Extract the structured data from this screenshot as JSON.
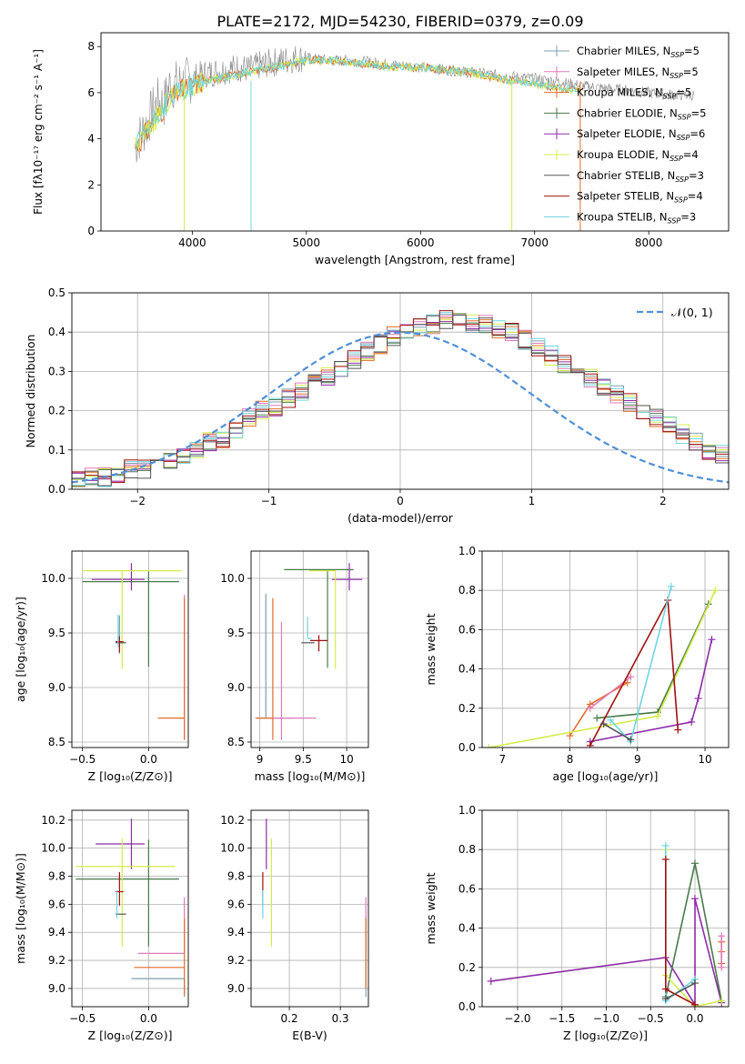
{
  "figure_title": "PLATE=2172, MJD=54230, FIBERID=0379, z=0.09",
  "colors": {
    "chabrier_miles": "#7f9fb0",
    "salpeter_miles": "#e07ab8",
    "kroupa_miles": "#e46d2a",
    "chabrier_elodie": "#4a7a4a",
    "salpeter_elodie": "#8e2aa8",
    "kroupa_elodie": "#d4ec48",
    "chabrier_stelib": "#555555",
    "salpeter_stelib": "#a01010",
    "kroupa_stelib": "#6ed6e0",
    "normal": "#4f8fd8",
    "grid": "#b0b0b0"
  },
  "chart_data": [
    {
      "id": "spectrum",
      "type": "line",
      "xlabel": "wavelength [Angstrom, rest frame]",
      "ylabel": "Flux [fλ10⁻¹⁷ erg cm⁻² s⁻¹ A⁻¹]",
      "xlim": [
        3200,
        8700
      ],
      "ylim": [
        0,
        8.6
      ],
      "xticks": [
        4000,
        5000,
        6000,
        7000,
        8000
      ],
      "yticks": [
        0,
        2,
        4,
        6,
        8
      ],
      "grid": false,
      "legend_position": "right",
      "data_wavelength": [
        3500,
        3550,
        3600,
        3650,
        3700,
        3750,
        3800,
        3900,
        4000,
        4100,
        4200,
        4300,
        4400,
        4500,
        4600,
        4700,
        4800,
        4900,
        5000,
        5200,
        5400,
        5600,
        5800,
        6000,
        6200,
        6400,
        6600,
        6800,
        7000,
        7200,
        7400,
        7600,
        7800,
        8000,
        8200,
        8400
      ],
      "data_flux": [
        3.7,
        4.2,
        4.6,
        5.2,
        5.6,
        5.5,
        6.3,
        6.4,
        6.6,
        6.8,
        6.9,
        7.0,
        7.1,
        7.0,
        7.2,
        7.3,
        7.4,
        7.5,
        7.5,
        7.4,
        7.4,
        7.3,
        7.2,
        7.1,
        7.0,
        6.9,
        6.8,
        6.7,
        6.6,
        6.5,
        6.3,
        6.2,
        6.1,
        6.0,
        5.9,
        5.9
      ],
      "model_wavelength": [
        3500,
        3600,
        3700,
        3800,
        3900,
        4000,
        4100,
        4200,
        4300,
        4400,
        4500,
        4600,
        4800,
        5000,
        5200,
        5400,
        5600,
        5800,
        6000,
        6200,
        6400,
        6600,
        6800,
        7000,
        7200,
        7400
      ],
      "model_flux": [
        3.6,
        4.3,
        5.0,
        5.7,
        6.1,
        6.3,
        6.5,
        6.6,
        6.7,
        6.8,
        6.9,
        7.0,
        7.2,
        7.4,
        7.4,
        7.3,
        7.2,
        7.1,
        7.1,
        7.0,
        6.9,
        6.7,
        6.5,
        6.4,
        6.2,
        6.1
      ],
      "legend": [
        "Chabrier MILES, N_SSP=5",
        "Salpeter MILES, N_SSP=5",
        "Kroupa MILES, N_SSP=5",
        "Chabrier ELODIE, N_SSP=5",
        "Salpeter ELODIE, N_SSP=6",
        "Kroupa ELODIE, N_SSP=4",
        "Chabrier STELIB, N_SSP=3",
        "Salpeter STELIB, N_SSP=4",
        "Kroupa STELIB, N_SSP=3"
      ]
    },
    {
      "id": "residuals",
      "type": "bar",
      "xlabel": "(data-model)/error",
      "ylabel": "Normed distribution",
      "xlim": [
        -2.5,
        2.5
      ],
      "ylim": [
        0,
        0.5
      ],
      "xticks": [
        -2,
        -1,
        0,
        1,
        2
      ],
      "yticks": [
        0.0,
        0.1,
        0.2,
        0.3,
        0.4,
        0.5
      ],
      "grid": true,
      "legend": [
        "𝒩(0, 1)"
      ],
      "legend_position": "top-right",
      "bin_start": -2.5,
      "bin_width": 0.1,
      "hist_values": [
        0.02,
        0.03,
        0.03,
        0.04,
        0.05,
        0.05,
        0.06,
        0.07,
        0.09,
        0.1,
        0.12,
        0.13,
        0.15,
        0.18,
        0.2,
        0.21,
        0.23,
        0.25,
        0.27,
        0.29,
        0.31,
        0.33,
        0.35,
        0.37,
        0.39,
        0.4,
        0.41,
        0.42,
        0.43,
        0.43,
        0.42,
        0.42,
        0.41,
        0.4,
        0.38,
        0.36,
        0.34,
        0.32,
        0.3,
        0.28,
        0.26,
        0.24,
        0.22,
        0.2,
        0.18,
        0.16,
        0.14,
        0.12,
        0.1,
        0.09,
        0.08,
        0.07,
        0.06,
        0.06,
        0.05,
        0.05,
        0.04,
        0.04,
        0.04,
        0.04
      ]
    },
    {
      "id": "age_vs_z",
      "type": "scatter",
      "xlabel": "Z [log₁₀(Z/Z⊙)]",
      "ylabel": "age  [log₁₀(age/yr)]",
      "xlim": [
        -0.58,
        0.3
      ],
      "ylim": [
        8.45,
        10.25
      ],
      "xticks": [
        -0.5,
        0.0
      ],
      "xtick_labels": [
        "−0.5",
        "0.0"
      ],
      "yticks": [
        8.5,
        9.0,
        9.5,
        10.0
      ],
      "grid": true,
      "points": [
        {
          "x": -0.22,
          "y": 9.41,
          "dxl": 0.0,
          "dxr": 0.0,
          "dyl": 0.1,
          "dyu": 0.25,
          "c": "chabrier_miles"
        },
        {
          "x": 0.27,
          "y": 8.72,
          "dxl": 0.03,
          "dxr": 0.0,
          "dyl": 0.2,
          "dyu": 1.13,
          "c": "salpeter_miles"
        },
        {
          "x": 0.27,
          "y": 8.72,
          "dxl": 0.2,
          "dxr": 0.0,
          "dyl": 0.2,
          "dyu": 1.1,
          "c": "kroupa_miles"
        },
        {
          "x": 0.0,
          "y": 9.97,
          "dxl": 0.5,
          "dxr": 0.23,
          "dyl": 0.78,
          "dyu": 0.1,
          "c": "chabrier_elodie"
        },
        {
          "x": -0.13,
          "y": 9.99,
          "dxl": 0.3,
          "dxr": 0.1,
          "dyl": 0.1,
          "dyu": 0.15,
          "c": "salpeter_elodie"
        },
        {
          "x": -0.2,
          "y": 10.07,
          "dxl": 0.3,
          "dxr": 0.45,
          "dyl": 0.9,
          "dyu": 0.0,
          "c": "kroupa_elodie"
        },
        {
          "x": -0.22,
          "y": 9.41,
          "dxl": 0.03,
          "dxr": 0.05,
          "dyl": 0.0,
          "dyu": 0.0,
          "c": "chabrier_stelib"
        },
        {
          "x": -0.22,
          "y": 9.42,
          "dxl": 0.03,
          "dxr": 0.03,
          "dyl": 0.1,
          "dyu": 0.05,
          "c": "salpeter_stelib"
        },
        {
          "x": -0.23,
          "y": 9.42,
          "dxl": 0.0,
          "dxr": 0.0,
          "dyl": 0.05,
          "dyu": 0.25,
          "c": "kroupa_stelib"
        }
      ]
    },
    {
      "id": "age_vs_mass",
      "type": "scatter",
      "xlabel": "mass [log₁₀(M/M⊙)]",
      "ylabel": "",
      "xlim": [
        8.9,
        10.25
      ],
      "ylim": [
        8.45,
        10.25
      ],
      "xticks": [
        9.0,
        9.5,
        10.0
      ],
      "yticks": [
        8.5,
        9.0,
        9.5,
        10.0
      ],
      "grid": true,
      "points": [
        {
          "x": 9.07,
          "y": 8.72,
          "dxl": 0.1,
          "dxr": 0.3,
          "dyl": 0.0,
          "dyu": 1.14,
          "c": "chabrier_miles"
        },
        {
          "x": 9.25,
          "y": 8.72,
          "dxl": 0.1,
          "dxr": 0.4,
          "dyl": 0.2,
          "dyu": 0.88,
          "c": "salpeter_miles"
        },
        {
          "x": 9.15,
          "y": 8.72,
          "dxl": 0.2,
          "dxr": 0.0,
          "dyl": 0.2,
          "dyu": 1.1,
          "c": "kroupa_miles"
        },
        {
          "x": 9.78,
          "y": 10.08,
          "dxl": 0.5,
          "dxr": 0.3,
          "dyl": 0.9,
          "dyu": 0.0,
          "c": "chabrier_elodie"
        },
        {
          "x": 10.03,
          "y": 9.99,
          "dxl": 0.2,
          "dxr": 0.15,
          "dyl": 0.1,
          "dyu": 0.15,
          "c": "salpeter_elodie"
        },
        {
          "x": 9.87,
          "y": 10.07,
          "dxl": 0.3,
          "dxr": 0.0,
          "dyl": 0.9,
          "dyu": 0.0,
          "c": "kroupa_elodie"
        },
        {
          "x": 9.53,
          "y": 9.41,
          "dxl": 0.05,
          "dxr": 0.1,
          "dyl": 0.0,
          "dyu": 0.0,
          "c": "chabrier_stelib"
        },
        {
          "x": 9.68,
          "y": 9.43,
          "dxl": 0.1,
          "dxr": 0.1,
          "dyl": 0.1,
          "dyu": 0.05,
          "c": "salpeter_stelib"
        },
        {
          "x": 9.55,
          "y": 9.45,
          "dxl": 0.0,
          "dxr": 0.05,
          "dyl": 0.0,
          "dyu": 0.2,
          "c": "kroupa_stelib"
        }
      ]
    },
    {
      "id": "weight_vs_age",
      "type": "line",
      "xlabel": "age  [log₁₀(age/yr)]",
      "ylabel": "mass weight",
      "xlim": [
        6.7,
        10.35
      ],
      "ylim": [
        0,
        1.0
      ],
      "xticks": [
        7,
        8,
        9,
        10
      ],
      "yticks": [
        0.0,
        0.2,
        0.4,
        0.6,
        0.8,
        1.0
      ],
      "grid": true,
      "series": [
        {
          "c": "kroupa_miles",
          "x": [
            8.0,
            8.3,
            8.85
          ],
          "y": [
            0.06,
            0.22,
            0.33
          ]
        },
        {
          "c": "salpeter_miles",
          "x": [
            8.3,
            8.9
          ],
          "y": [
            0.2,
            0.36
          ]
        },
        {
          "c": "chabrier_elodie",
          "x": [
            8.4,
            9.3,
            10.05
          ],
          "y": [
            0.15,
            0.18,
            0.73
          ]
        },
        {
          "c": "salpeter_elodie",
          "x": [
            8.3,
            9.8,
            9.9,
            10.1
          ],
          "y": [
            0.03,
            0.13,
            0.25,
            0.55
          ]
        },
        {
          "c": "kroupa_elodie",
          "x": [
            6.8,
            9.3,
            10.15
          ],
          "y": [
            0.0,
            0.16,
            0.8
          ]
        },
        {
          "c": "salpeter_stelib",
          "x": [
            8.3,
            9.45,
            9.6
          ],
          "y": [
            0.01,
            0.75,
            0.09
          ]
        },
        {
          "c": "kroupa_stelib",
          "x": [
            8.6,
            8.9,
            9.5
          ],
          "y": [
            0.14,
            0.03,
            0.82
          ]
        },
        {
          "c": "chabrier_stelib",
          "x": [
            8.5,
            8.9
          ],
          "y": [
            0.12,
            0.04
          ]
        }
      ]
    },
    {
      "id": "mass_vs_z",
      "type": "scatter",
      "xlabel": "Z [log₁₀(Z/Z⊙)]",
      "ylabel": "mass [log₁₀(M/M⊙)]",
      "xlim": [
        -0.58,
        0.3
      ],
      "ylim": [
        8.87,
        10.27
      ],
      "xticks": [
        -0.5,
        0.0
      ],
      "xtick_labels": [
        "−0.5",
        "0.0"
      ],
      "yticks": [
        9.0,
        9.2,
        9.4,
        9.6,
        9.8,
        10.0,
        10.2
      ],
      "grid": true,
      "points": [
        {
          "x": 0.27,
          "y": 9.07,
          "dxl": 0.4,
          "dxr": 0.0,
          "dyl": 0.13,
          "dyu": 0.0,
          "c": "chabrier_miles"
        },
        {
          "x": 0.27,
          "y": 9.25,
          "dxl": 0.35,
          "dxr": 0.0,
          "dyl": 0.0,
          "dyu": 0.4,
          "c": "salpeter_miles"
        },
        {
          "x": 0.27,
          "y": 9.15,
          "dxl": 0.38,
          "dxr": 0.0,
          "dyl": 0.2,
          "dyu": 0.35,
          "c": "kroupa_miles"
        },
        {
          "x": 0.0,
          "y": 9.78,
          "dxl": 0.55,
          "dxr": 0.23,
          "dyl": 0.48,
          "dyu": 0.28,
          "c": "chabrier_elodie"
        },
        {
          "x": -0.13,
          "y": 10.03,
          "dxl": 0.27,
          "dxr": 0.1,
          "dyl": 0.18,
          "dyu": 0.18,
          "c": "salpeter_elodie"
        },
        {
          "x": -0.2,
          "y": 9.87,
          "dxl": 0.35,
          "dxr": 0.4,
          "dyl": 0.57,
          "dyu": 0.2,
          "c": "kroupa_elodie"
        },
        {
          "x": -0.22,
          "y": 9.53,
          "dxl": 0.03,
          "dxr": 0.05,
          "dyl": 0.0,
          "dyu": 0.0,
          "c": "chabrier_stelib"
        },
        {
          "x": -0.22,
          "y": 9.69,
          "dxl": 0.03,
          "dxr": 0.03,
          "dyl": 0.1,
          "dyu": 0.14,
          "c": "salpeter_stelib"
        },
        {
          "x": -0.24,
          "y": 9.55,
          "dxl": 0.0,
          "dxr": 0.0,
          "dyl": 0.05,
          "dyu": 0.15,
          "c": "kroupa_stelib"
        }
      ]
    },
    {
      "id": "mass_vs_ebv",
      "type": "scatter",
      "xlabel": "E(B-V)",
      "ylabel": "",
      "xlim": [
        0.125,
        0.355
      ],
      "ylim": [
        8.87,
        10.27
      ],
      "xticks": [
        0.2,
        0.3
      ],
      "yticks": [
        9.0,
        9.2,
        9.4,
        9.6,
        9.8,
        10.0,
        10.2
      ],
      "grid": true,
      "points": [
        {
          "x": 0.35,
          "y": 9.07,
          "dxl": 0.0,
          "dxr": 0.0,
          "dyl": 0.13,
          "dyu": 0.45,
          "c": "chabrier_miles"
        },
        {
          "x": 0.35,
          "y": 9.25,
          "dxl": 0.0,
          "dxr": 0.0,
          "dyl": 0.0,
          "dyu": 0.4,
          "c": "salpeter_miles"
        },
        {
          "x": 0.35,
          "y": 9.2,
          "dxl": 0.0,
          "dxr": 0.0,
          "dyl": 0.2,
          "dyu": 0.3,
          "c": "kroupa_miles"
        },
        {
          "x": 0.155,
          "y": 10.03,
          "dxl": 0.0,
          "dxr": 0.0,
          "dyl": 0.18,
          "dyu": 0.18,
          "c": "salpeter_elodie"
        },
        {
          "x": 0.165,
          "y": 9.8,
          "dxl": 0.0,
          "dxr": 0.0,
          "dyl": 0.5,
          "dyu": 0.27,
          "c": "kroupa_elodie"
        },
        {
          "x": 0.148,
          "y": 9.69,
          "dxl": 0.0,
          "dxr": 0.0,
          "dyl": 0.1,
          "dyu": 0.14,
          "c": "salpeter_stelib"
        },
        {
          "x": 0.148,
          "y": 9.55,
          "dxl": 0.0,
          "dxr": 0.0,
          "dyl": 0.05,
          "dyu": 0.15,
          "c": "kroupa_stelib"
        }
      ]
    },
    {
      "id": "weight_vs_z",
      "type": "line",
      "xlabel": "Z [log₁₀(Z/Z⊙)]",
      "ylabel": "mass weight",
      "xlim": [
        -2.4,
        0.38
      ],
      "ylim": [
        0,
        1.0
      ],
      "xticks": [
        -2.0,
        -1.5,
        -1.0,
        -0.5,
        0.0
      ],
      "xtick_labels": [
        "−2.0",
        "−1.5",
        "−1.0",
        "−0.5",
        "0.0"
      ],
      "yticks": [
        0.0,
        0.2,
        0.4,
        0.6,
        0.8,
        1.0
      ],
      "grid": true,
      "series": [
        {
          "c": "salpeter_elodie",
          "x": [
            -2.3,
            -0.33,
            0.0,
            0.0,
            0.3
          ],
          "y": [
            0.13,
            0.25,
            0.01,
            0.55,
            0.02
          ]
        },
        {
          "c": "chabrier_elodie",
          "x": [
            -0.33,
            0.0,
            0.3
          ],
          "y": [
            0.05,
            0.73,
            0.03
          ]
        },
        {
          "c": "kroupa_elodie",
          "x": [
            -0.33,
            -0.33,
            0.0,
            0.3
          ],
          "y": [
            0.8,
            0.16,
            0.0,
            0.03
          ]
        },
        {
          "c": "kroupa_miles",
          "x": [
            0.3,
            0.3,
            0.3
          ],
          "y": [
            0.22,
            0.28,
            0.33
          ]
        },
        {
          "c": "salpeter_miles",
          "x": [
            0.3,
            0.3
          ],
          "y": [
            0.2,
            0.36
          ]
        },
        {
          "c": "kroupa_stelib",
          "x": [
            -0.33,
            -0.33,
            0.0
          ],
          "y": [
            0.82,
            0.03,
            0.14
          ]
        },
        {
          "c": "salpeter_stelib",
          "x": [
            -0.33,
            -0.33,
            0.0
          ],
          "y": [
            0.75,
            0.09,
            0.01
          ]
        },
        {
          "c": "chabrier_stelib",
          "x": [
            -0.33,
            0.0
          ],
          "y": [
            0.04,
            0.12
          ]
        }
      ]
    }
  ]
}
